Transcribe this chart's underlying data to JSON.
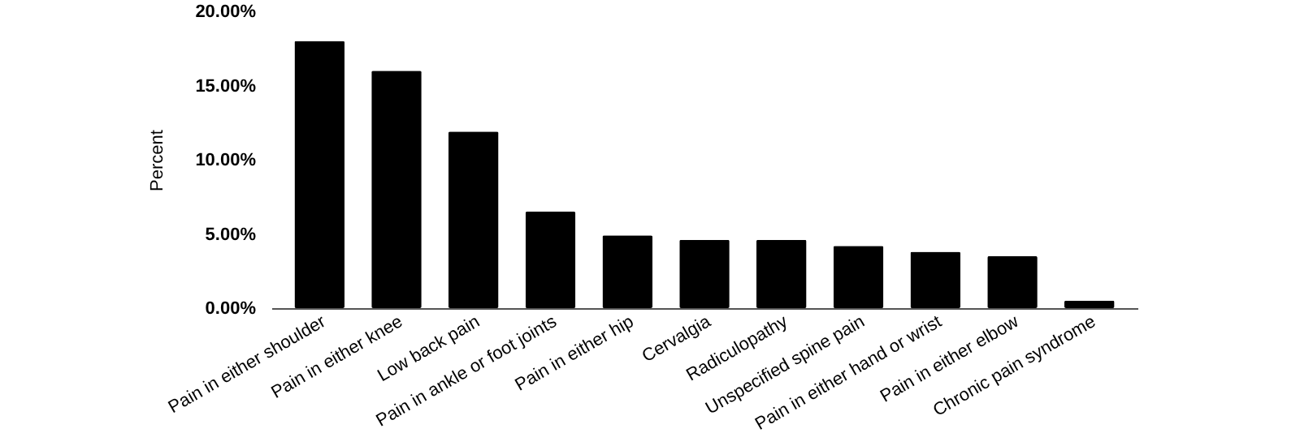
{
  "chart_data": {
    "type": "bar",
    "ylabel": "Percent",
    "categories": [
      "Pain in either shoulder",
      "Pain in either knee",
      "Low back pain",
      "Pain in ankle or foot joints",
      "Pain in either hip",
      "Cervalgia",
      "Radiculopathy",
      "Unspecified spine pain",
      "Pain in either hand or wrist",
      "Pain in either elbow",
      "Chronic pain syndrome"
    ],
    "values": [
      18.0,
      16.0,
      11.9,
      6.5,
      4.9,
      4.6,
      4.6,
      4.2,
      3.8,
      3.5,
      0.5
    ],
    "color": "#000000",
    "ylim": [
      0,
      20
    ],
    "yticks": [
      {
        "value": 0,
        "label": "0.00%"
      },
      {
        "value": 5,
        "label": "5.00%"
      },
      {
        "value": 10,
        "label": "10.00%"
      },
      {
        "value": 15,
        "label": "15.00%"
      },
      {
        "value": 20,
        "label": "20.00%"
      }
    ],
    "grid": false
  }
}
